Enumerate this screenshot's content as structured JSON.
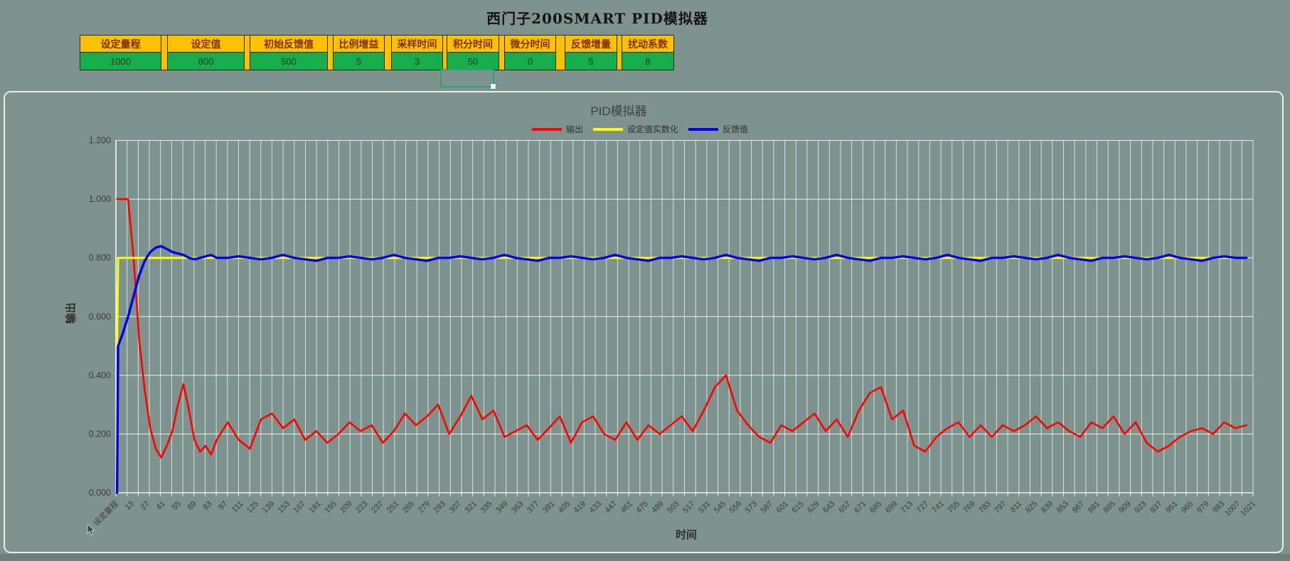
{
  "page_title": "西门子200SMART PID模拟器",
  "params_table": {
    "columns": [
      {
        "label": "设定量程",
        "value": "1000"
      },
      {
        "label": "设定值",
        "value": "800"
      },
      {
        "label": "初始反馈值",
        "value": "500"
      },
      {
        "label": "比例增益",
        "value": "5"
      },
      {
        "label": "采样时间",
        "value": "3"
      },
      {
        "label": "积分时间",
        "value": "50"
      },
      {
        "label": "微分时间",
        "value": "0"
      },
      {
        "label": "反馈增量",
        "value": "5"
      },
      {
        "label": "扰动系数",
        "value": "8"
      }
    ],
    "header_bg": "#FFC000",
    "value_bg": "#17AD4D",
    "header_text_color": "#7E3200",
    "selection_border_color": "#2BA474"
  },
  "chart_data": {
    "type": "line",
    "title": "PID模拟器",
    "xlabel": "时间",
    "ylabel": "输出",
    "ylim": [
      0,
      1.2
    ],
    "xlim": [
      0,
      1027
    ],
    "grid": true,
    "grid_color": "#FFFFFF",
    "legend_position": "top-center",
    "y_tick_labels": [
      "0.000",
      "0.200",
      "0.400",
      "0.600",
      "0.800",
      "1.000",
      "1.200"
    ],
    "x_tick_labels": [
      "设定量程",
      "13",
      "27",
      "41",
      "55",
      "69",
      "83",
      "97",
      "111",
      "125",
      "139",
      "153",
      "167",
      "181",
      "195",
      "209",
      "223",
      "237",
      "251",
      "265",
      "279",
      "293",
      "307",
      "321",
      "335",
      "349",
      "363",
      "377",
      "391",
      "405",
      "419",
      "433",
      "447",
      "461",
      "475",
      "489",
      "503",
      "517",
      "531",
      "545",
      "559",
      "573",
      "587",
      "601",
      "615",
      "629",
      "643",
      "657",
      "671",
      "685",
      "699",
      "713",
      "727",
      "741",
      "755",
      "769",
      "783",
      "797",
      "811",
      "825",
      "839",
      "853",
      "867",
      "881",
      "895",
      "909",
      "923",
      "937",
      "951",
      "965",
      "979",
      "993",
      "1007",
      "1021"
    ],
    "x": [
      1,
      2,
      6,
      11,
      16,
      21,
      26,
      31,
      36,
      41,
      46,
      51,
      56,
      61,
      66,
      71,
      76,
      81,
      86,
      91,
      96,
      101,
      111,
      121,
      131,
      141,
      151,
      161,
      171,
      181,
      191,
      201,
      211,
      221,
      231,
      241,
      251,
      261,
      271,
      281,
      291,
      301,
      311,
      321,
      331,
      341,
      351,
      361,
      371,
      381,
      391,
      401,
      411,
      421,
      431,
      441,
      451,
      461,
      471,
      481,
      491,
      501,
      511,
      521,
      531,
      541,
      551,
      561,
      571,
      581,
      591,
      601,
      611,
      621,
      631,
      641,
      651,
      661,
      671,
      681,
      691,
      701,
      711,
      721,
      731,
      741,
      751,
      761,
      771,
      781,
      791,
      801,
      811,
      821,
      831,
      841,
      851,
      861,
      871,
      881,
      891,
      901,
      911,
      921,
      931,
      941,
      951,
      961,
      971,
      981,
      991,
      1001,
      1011,
      1021
    ],
    "series": [
      {
        "name": "输出",
        "color": "#FF0000",
        "values": [
          1.0,
          1.0,
          1.0,
          1.0,
          0.8,
          0.52,
          0.35,
          0.22,
          0.15,
          0.12,
          0.16,
          0.21,
          0.3,
          0.37,
          0.28,
          0.18,
          0.14,
          0.16,
          0.13,
          0.18,
          0.21,
          0.24,
          0.18,
          0.15,
          0.25,
          0.27,
          0.22,
          0.25,
          0.18,
          0.21,
          0.17,
          0.2,
          0.24,
          0.21,
          0.23,
          0.17,
          0.21,
          0.27,
          0.23,
          0.26,
          0.3,
          0.2,
          0.26,
          0.33,
          0.25,
          0.28,
          0.19,
          0.21,
          0.23,
          0.18,
          0.22,
          0.26,
          0.17,
          0.24,
          0.26,
          0.2,
          0.18,
          0.24,
          0.18,
          0.23,
          0.2,
          0.23,
          0.26,
          0.21,
          0.28,
          0.36,
          0.4,
          0.28,
          0.23,
          0.19,
          0.17,
          0.23,
          0.21,
          0.24,
          0.27,
          0.21,
          0.25,
          0.19,
          0.28,
          0.34,
          0.36,
          0.25,
          0.28,
          0.16,
          0.14,
          0.19,
          0.22,
          0.24,
          0.19,
          0.23,
          0.19,
          0.23,
          0.21,
          0.23,
          0.26,
          0.22,
          0.24,
          0.21,
          0.19,
          0.24,
          0.22,
          0.26,
          0.2,
          0.24,
          0.17,
          0.14,
          0.16,
          0.19,
          0.21,
          0.22,
          0.2,
          0.24,
          0.22,
          0.23
        ]
      },
      {
        "name": "设定值实数化",
        "color": "#FFFF00",
        "values": [
          0.5,
          0.8,
          0.8,
          0.8,
          0.8,
          0.8,
          0.8,
          0.8,
          0.8,
          0.8,
          0.8,
          0.8,
          0.8,
          0.8,
          0.8,
          0.8,
          0.8,
          0.8,
          0.8,
          0.8,
          0.8,
          0.8,
          0.8,
          0.8,
          0.8,
          0.8,
          0.8,
          0.8,
          0.8,
          0.8,
          0.8,
          0.8,
          0.8,
          0.8,
          0.8,
          0.8,
          0.8,
          0.8,
          0.8,
          0.8,
          0.8,
          0.8,
          0.8,
          0.8,
          0.8,
          0.8,
          0.8,
          0.8,
          0.8,
          0.8,
          0.8,
          0.8,
          0.8,
          0.8,
          0.8,
          0.8,
          0.8,
          0.8,
          0.8,
          0.8,
          0.8,
          0.8,
          0.8,
          0.8,
          0.8,
          0.8,
          0.8,
          0.8,
          0.8,
          0.8,
          0.8,
          0.8,
          0.8,
          0.8,
          0.8,
          0.8,
          0.8,
          0.8,
          0.8,
          0.8,
          0.8,
          0.8,
          0.8,
          0.8,
          0.8,
          0.8,
          0.8,
          0.8,
          0.8,
          0.8,
          0.8,
          0.8,
          0.8,
          0.8,
          0.8,
          0.8,
          0.8,
          0.8,
          0.8,
          0.8,
          0.8,
          0.8,
          0.8,
          0.8,
          0.8,
          0.8,
          0.8,
          0.8,
          0.8,
          0.8,
          0.8,
          0.8,
          0.8,
          0.8
        ]
      },
      {
        "name": "反馈值",
        "color": "#0000EE",
        "values": [
          0.0,
          0.5,
          0.54,
          0.6,
          0.67,
          0.74,
          0.79,
          0.82,
          0.835,
          0.84,
          0.83,
          0.82,
          0.815,
          0.81,
          0.8,
          0.795,
          0.8,
          0.805,
          0.81,
          0.8,
          0.8,
          0.8,
          0.805,
          0.8,
          0.795,
          0.8,
          0.81,
          0.8,
          0.795,
          0.79,
          0.8,
          0.8,
          0.805,
          0.8,
          0.795,
          0.8,
          0.81,
          0.8,
          0.795,
          0.79,
          0.8,
          0.8,
          0.805,
          0.8,
          0.795,
          0.8,
          0.81,
          0.8,
          0.795,
          0.79,
          0.8,
          0.8,
          0.805,
          0.8,
          0.795,
          0.8,
          0.81,
          0.8,
          0.795,
          0.79,
          0.8,
          0.8,
          0.805,
          0.8,
          0.795,
          0.8,
          0.81,
          0.8,
          0.795,
          0.79,
          0.8,
          0.8,
          0.805,
          0.8,
          0.795,
          0.8,
          0.81,
          0.8,
          0.795,
          0.79,
          0.8,
          0.8,
          0.805,
          0.8,
          0.795,
          0.8,
          0.81,
          0.8,
          0.795,
          0.79,
          0.8,
          0.8,
          0.805,
          0.8,
          0.795,
          0.8,
          0.81,
          0.8,
          0.795,
          0.79,
          0.8,
          0.8,
          0.805,
          0.8,
          0.795,
          0.8,
          0.81,
          0.8,
          0.795,
          0.79,
          0.8,
          0.805,
          0.8,
          0.8
        ]
      }
    ]
  }
}
